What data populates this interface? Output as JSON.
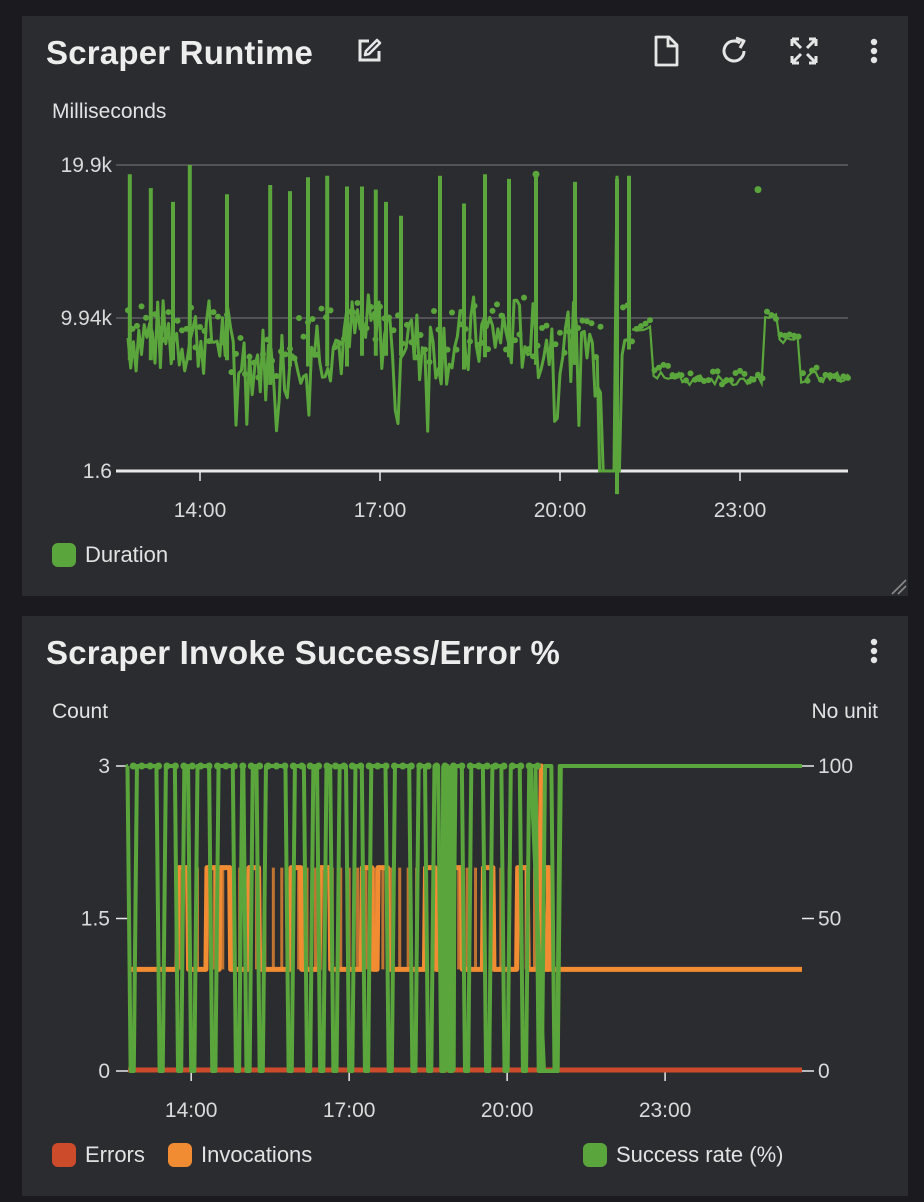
{
  "panels": {
    "runtime": {
      "title": "Scraper Runtime",
      "icons": [
        "edit-icon",
        "document-icon",
        "refresh-icon",
        "expand-icon",
        "more-vertical-icon"
      ],
      "y_unit": "Milliseconds",
      "legend": [
        {
          "label": "Duration",
          "color": "#5aa63c"
        }
      ]
    },
    "invoke": {
      "title": "Scraper Invoke Success/Error %",
      "icons": [
        "more-vertical-icon"
      ],
      "y_unit_left": "Count",
      "y_unit_right": "No unit",
      "legend": [
        {
          "label": "Errors",
          "color": "#cc4b2b"
        },
        {
          "label": "Invocations",
          "color": "#f28c33"
        },
        {
          "label": "Success rate (%)",
          "color": "#5aa63c"
        }
      ]
    }
  },
  "chart_data": [
    {
      "type": "line",
      "title": "Scraper Runtime",
      "ylabel": "Milliseconds",
      "x_ticks": [
        "14:00",
        "17:00",
        "20:00",
        "23:00"
      ],
      "x_range_hours": [
        12.8,
        24.8
      ],
      "y_ticks": [
        "19.9k",
        "9.94k",
        "1.6"
      ],
      "ylim": [
        1.6,
        19900
      ],
      "series": [
        {
          "name": "Duration",
          "color": "#5aa63c",
          "spikes_x": [
            12.83,
            13.18,
            13.55,
            13.83,
            14.45,
            15.17,
            15.5,
            15.8,
            16.12,
            16.45,
            16.7,
            16.93,
            17.1,
            17.35,
            18.0,
            18.4,
            18.75,
            19.15,
            19.6,
            20.25,
            20.95,
            21.15,
            23.3
          ],
          "spikes_y": [
            19300,
            18400,
            17500,
            19900,
            18000,
            18600,
            18200,
            19100,
            19200,
            18500,
            18500,
            18300,
            17500,
            16600,
            19200,
            17400,
            19300,
            19000,
            19300,
            18800,
            19000,
            19200,
            18300
          ],
          "base_levels": [
            [
              12.8,
              8700
            ],
            [
              14.5,
              7100
            ],
            [
              15.5,
              8300
            ],
            [
              16.5,
              9000
            ],
            [
              17.5,
              8100
            ],
            [
              18.5,
              8900
            ],
            [
              19.5,
              8400
            ],
            [
              20.5,
              7400
            ],
            [
              20.7,
              1.6
            ],
            [
              21.0,
              9400
            ],
            [
              21.5,
              6300
            ],
            [
              22.0,
              5900
            ],
            [
              23.3,
              5800
            ],
            [
              23.4,
              9900
            ],
            [
              23.6,
              8400
            ],
            [
              24.0,
              6100
            ],
            [
              24.8,
              5600
            ]
          ]
        }
      ]
    },
    {
      "type": "line",
      "title": "Scraper Invoke Success/Error %",
      "ylabel": "Count",
      "ylabel_right": "No unit",
      "x_ticks": [
        "14:00",
        "17:00",
        "20:00",
        "23:00"
      ],
      "x_range_hours": [
        12.8,
        25.6
      ],
      "y_ticks_left": [
        "3",
        "1.5",
        "0"
      ],
      "y_ticks_right": [
        "100",
        "50",
        "0"
      ],
      "ylim_left": [
        0,
        3
      ],
      "ylim_right": [
        0,
        100
      ],
      "series": [
        {
          "name": "Errors",
          "color": "#cc4b2b",
          "axis": "left",
          "values": [
            [
              12.8,
              0
            ],
            [
              25.6,
              0
            ]
          ]
        },
        {
          "name": "Invocations",
          "color": "#f28c33",
          "axis": "left",
          "base": 1,
          "peak_hours": [
            13.75,
            14.3,
            14.55,
            15.1,
            15.9,
            16.45,
            17.25,
            17.55,
            18.45,
            18.95,
            19.55,
            20.2,
            20.6
          ],
          "final_spike": [
            20.65,
            3
          ]
        },
        {
          "name": "Success rate (%)",
          "color": "#5aa63c",
          "axis": "right",
          "drops_to_zero_hours": [
            12.85,
            13.4,
            13.75,
            14.0,
            14.4,
            14.85,
            15.05,
            15.3,
            15.85,
            16.2,
            16.45,
            16.7,
            17.0,
            17.3,
            17.75,
            18.2,
            18.5,
            18.75,
            18.9,
            19.2,
            19.6,
            19.95,
            20.3,
            20.6,
            20.9
          ],
          "after": [
            [
              21.0,
              100
            ],
            [
              25.6,
              100
            ]
          ]
        }
      ]
    }
  ]
}
